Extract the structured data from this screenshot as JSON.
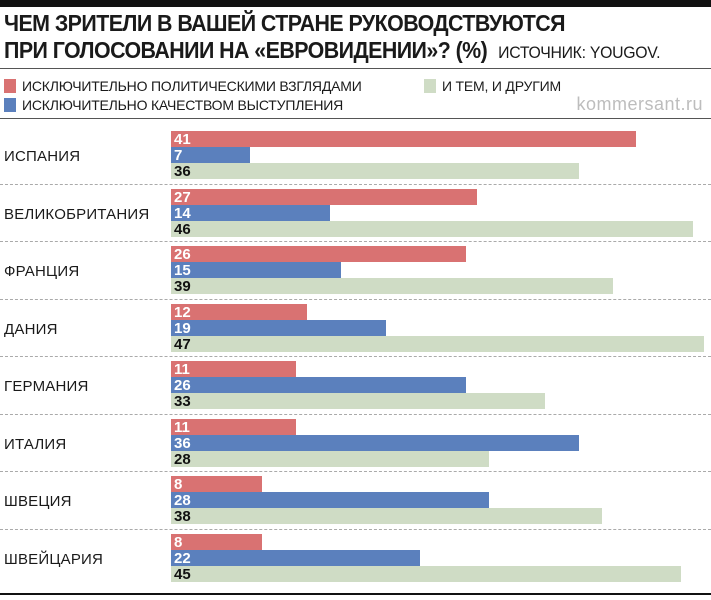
{
  "chart_data": {
    "type": "bar",
    "orientation": "horizontal",
    "title": "ЧЕМ ЗРИТЕЛИ В ВАШЕЙ СТРАНЕ РУКОВОДСТВУЮТСЯ ПРИ ГОЛОСОВАНИИ НА «ЕВРОВИДЕНИИ»? (%)",
    "source": "ИСТОЧНИК: YOUGOV.",
    "brand": "kommersant.ru",
    "categories": [
      "ИСПАНИЯ",
      "ВЕЛИКОБРИТАНИЯ",
      "ФРАНЦИЯ",
      "ДАНИЯ",
      "ГЕРМАНИЯ",
      "ИТАЛИЯ",
      "ШВЕЦИЯ",
      "ШВЕЙЦАРИЯ"
    ],
    "series": [
      {
        "name": "ИСКЛЮЧИТЕЛЬНО ПОЛИТИЧЕСКИМИ ВЗГЛЯДАМИ",
        "color": "#d97272",
        "label_color": "#ffffff",
        "values": [
          41,
          27,
          26,
          12,
          11,
          11,
          8,
          8
        ]
      },
      {
        "name": "ИСКЛЮЧИТЕЛЬНО КАЧЕСТВОМ ВЫСТУПЛЕНИЯ",
        "color": "#5b80bd",
        "label_color": "#ffffff",
        "values": [
          7,
          14,
          15,
          19,
          26,
          36,
          28,
          22
        ]
      },
      {
        "name": "И ТЕМ, И ДРУГИМ",
        "color": "#cfdcc5",
        "label_color": "#111111",
        "values": [
          36,
          46,
          39,
          47,
          33,
          28,
          38,
          45
        ]
      }
    ],
    "xlim": [
      0,
      47
    ],
    "grid": false,
    "legend": "top"
  }
}
